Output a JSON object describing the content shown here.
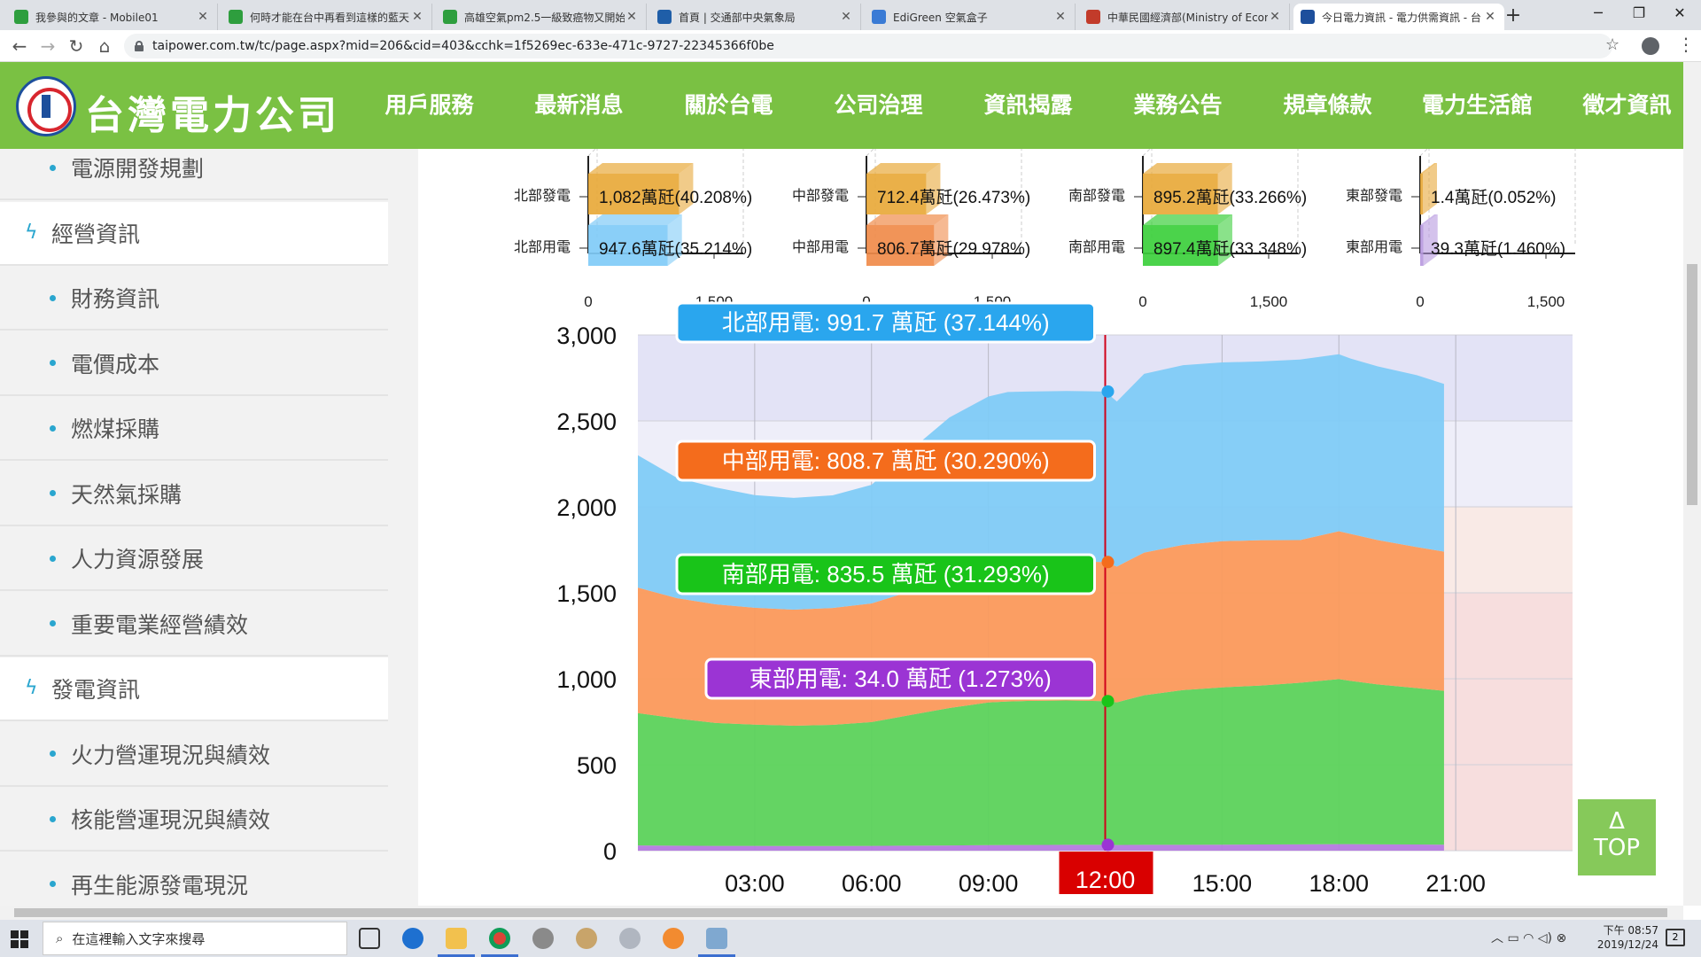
{
  "browser": {
    "tabs": [
      {
        "title": "我參與的文章 - Mobile01",
        "favicon_color": "#2e9e3e"
      },
      {
        "title": "何時才能在台中再看到這樣的藍天",
        "favicon_color": "#2e9e3e"
      },
      {
        "title": "高雄空氣pm2.5一級致癌物又開始",
        "favicon_color": "#2e9e3e"
      },
      {
        "title": "首頁 | 交通部中央氣象局",
        "favicon_color": "#1f5ea8"
      },
      {
        "title": "EdiGreen 空氣盒子",
        "favicon_color": "#3a7bd5"
      },
      {
        "title": "中華民國經濟部(Ministry of Econ",
        "favicon_color": "#c23b2a"
      },
      {
        "title": "今日電力資訊 - 電力供需資訊 - 台",
        "favicon_color": "#1d4f9c"
      }
    ],
    "active_tab": 6,
    "url": "taipower.com.tw/tc/page.aspx?mid=206&cid=403&cchk=1f5269ec-633e-471c-9727-22345366f0be"
  },
  "site": {
    "logo_text": "台灣電力公司",
    "nav": [
      "用戶服務",
      "最新消息",
      "關於台電",
      "公司治理",
      "資訊揭露",
      "業務公告",
      "規章條款",
      "電力生活館",
      "徵才資訊"
    ],
    "active_nav": 4
  },
  "sidebar": [
    {
      "label": "電源開發規劃",
      "type": "sub"
    },
    {
      "label": "經營資訊",
      "type": "cat"
    },
    {
      "label": "財務資訊",
      "type": "sub"
    },
    {
      "label": "電價成本",
      "type": "sub"
    },
    {
      "label": "燃煤採購",
      "type": "sub"
    },
    {
      "label": "天然氣採購",
      "type": "sub"
    },
    {
      "label": "人力資源發展",
      "type": "sub"
    },
    {
      "label": "重要電業經營績效",
      "type": "sub"
    },
    {
      "label": "發電資訊",
      "type": "cat"
    },
    {
      "label": "火力營運現況與績效",
      "type": "sub"
    },
    {
      "label": "核能營運現況與績效",
      "type": "sub"
    },
    {
      "label": "再生能源發電現況",
      "type": "sub"
    }
  ],
  "top_button": {
    "arrow": "Δ",
    "label": "TOP"
  },
  "taskbar": {
    "search_placeholder": "在這裡輸入文字來搜尋",
    "clock_time": "下午 08:57",
    "clock_date": "2019/12/24",
    "notif_count": "2"
  },
  "colors": {
    "green": "#7ac143",
    "north": "#80cbf7",
    "central": "#fb9a5c",
    "south": "#5cd35c",
    "east": "#b57be0",
    "gen": "#e8a93a"
  },
  "chart_data": [
    {
      "type": "bar",
      "region": "北部",
      "series": [
        {
          "name": "北部發電",
          "value": 1082,
          "label": "1,082萬瓩(40.208%)",
          "color": "#e8a93a"
        },
        {
          "name": "北部用電",
          "value": 947.6,
          "label": "947.6萬瓩(35.214%)",
          "color": "#80cbf7"
        }
      ],
      "xlim": [
        0,
        1500
      ],
      "xticks": [
        "0",
        "1,500"
      ]
    },
    {
      "type": "bar",
      "region": "中部",
      "series": [
        {
          "name": "中部發電",
          "value": 712.4,
          "label": "712.4萬瓩(26.473%)",
          "color": "#e8a93a"
        },
        {
          "name": "中部用電",
          "value": 806.7,
          "label": "806.7萬瓩(29.978%)",
          "color": "#f08b4a"
        }
      ],
      "xlim": [
        0,
        1500
      ],
      "xticks": [
        "0",
        "1,500"
      ]
    },
    {
      "type": "bar",
      "region": "南部",
      "series": [
        {
          "name": "南部發電",
          "value": 895.2,
          "label": "895.2萬瓩(33.266%)",
          "color": "#e8a93a"
        },
        {
          "name": "南部用電",
          "value": 897.4,
          "label": "897.4萬瓩(33.348%)",
          "color": "#3ccf3c"
        }
      ],
      "xlim": [
        0,
        1500
      ],
      "xticks": [
        "0",
        "1,500"
      ]
    },
    {
      "type": "bar",
      "region": "東部",
      "series": [
        {
          "name": "東部發電",
          "value": 1.4,
          "label": "1.4萬瓩(0.052%)",
          "color": "#e8a93a"
        },
        {
          "name": "東部用電",
          "value": 39.3,
          "label": "39.3萬瓩(1.460%)",
          "color": "#b89ae0"
        }
      ],
      "xlim": [
        0,
        1500
      ],
      "xticks": [
        "0",
        "1,500"
      ]
    },
    {
      "type": "area",
      "stacked": true,
      "ylim": [
        0,
        3000
      ],
      "yticks": [
        0,
        500,
        1000,
        1500,
        2000,
        2500,
        3000
      ],
      "ytick_labels": [
        "0",
        "500",
        "1,000",
        "1,500",
        "2,000",
        "2,500",
        "3,000"
      ],
      "xlim": [
        0,
        24
      ],
      "xticks": [
        3,
        6,
        9,
        12,
        15,
        18,
        21
      ],
      "xtick_labels": [
        "03:00",
        "06:00",
        "09:00",
        "12:00",
        "15:00",
        "18:00",
        "21:00"
      ],
      "highlight_x": 12,
      "highlight_label": "12:00",
      "x": [
        0,
        1,
        2,
        3,
        4,
        5,
        6,
        7,
        8,
        9,
        9.5,
        10,
        11,
        11.5,
        12,
        12.3,
        13,
        14,
        15,
        16,
        17,
        18,
        18.3,
        19,
        20,
        20.7
      ],
      "series": [
        {
          "name": "東部用電",
          "color": "#b57be0",
          "values": [
            30,
            29,
            28,
            28,
            27,
            27,
            28,
            29,
            30,
            32,
            33,
            33,
            34,
            34,
            34,
            33,
            34,
            34,
            35,
            36,
            37,
            38,
            38,
            37,
            36,
            35
          ]
        },
        {
          "name": "南部用電",
          "color": "#5cd35c",
          "values": [
            770,
            740,
            715,
            705,
            700,
            705,
            720,
            760,
            800,
            830,
            835,
            838,
            840,
            838,
            836,
            830,
            870,
            900,
            915,
            925,
            940,
            960,
            950,
            930,
            910,
            895
          ]
        },
        {
          "name": "中部用電",
          "color": "#fb9a5c",
          "values": [
            730,
            700,
            690,
            680,
            675,
            680,
            690,
            720,
            760,
            790,
            800,
            805,
            810,
            809,
            809,
            790,
            830,
            845,
            850,
            845,
            830,
            860,
            855,
            840,
            820,
            810
          ]
        },
        {
          "name": "北部用電",
          "color": "#80cbf7",
          "values": [
            770,
            700,
            680,
            655,
            650,
            655,
            690,
            820,
            930,
            990,
            1000,
            995,
            990,
            992,
            992,
            960,
            1040,
            1045,
            1040,
            1040,
            1050,
            1030,
            1020,
            1010,
            1000,
            975
          ]
        }
      ],
      "tooltips": [
        {
          "name": "北部用電",
          "text": "北部用電: 991.7 萬瓩 (37.144%)",
          "color": "#2aa6ee"
        },
        {
          "name": "中部用電",
          "text": "中部用電: 808.7 萬瓩 (30.290%)",
          "color": "#f46c1c"
        },
        {
          "name": "南部用電",
          "text": "南部用電: 835.5 萬瓩 (31.293%)",
          "color": "#19c419"
        },
        {
          "name": "東部用電",
          "text": "東部用電: 34.0 萬瓩 (1.273%)",
          "color": "#9b34d4"
        }
      ]
    }
  ]
}
